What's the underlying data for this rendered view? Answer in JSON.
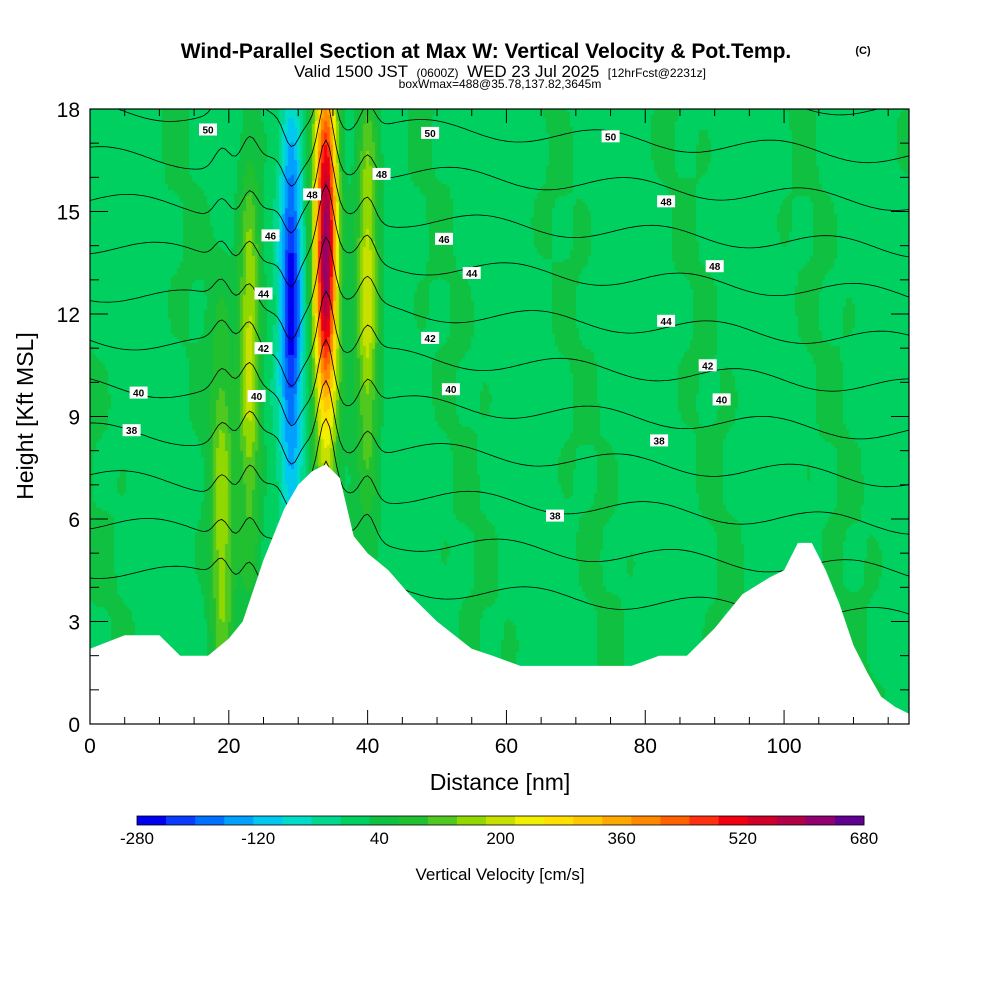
{
  "chart_data": {
    "type": "heatmap",
    "title": "Wind-Parallel Section at Max W: Vertical Velocity & Pot.Temp.",
    "title_mark": "(C)",
    "subtitle": {
      "valid": "Valid 1500 JST",
      "utc": "(0600Z)",
      "date": "WED 23 Jul 2025",
      "forecast": "[12hrFcst@2231z]"
    },
    "box_info": "boxWmax=488@35.78,137.82,3645m",
    "xlabel": "Distance [nm]",
    "ylabel": "Height [Kft MSL]",
    "xlim": [
      0,
      118
    ],
    "ylim": [
      0,
      18
    ],
    "x_ticks": [
      "0",
      "20",
      "40",
      "60",
      "80",
      "100"
    ],
    "y_ticks": [
      "0",
      "3",
      "6",
      "9",
      "12",
      "15",
      "18"
    ],
    "colorbar": {
      "label": "Vertical Velocity [cm/s]",
      "range": [
        -280,
        680
      ],
      "step": 40,
      "ticks": [
        "-280",
        "-120",
        "40",
        "200",
        "360",
        "520",
        "680"
      ],
      "colors": [
        "#0000f0",
        "#0a3cff",
        "#0070ff",
        "#00a0ff",
        "#00c8f0",
        "#00dcc8",
        "#00d890",
        "#00d060",
        "#10c040",
        "#20c030",
        "#50c820",
        "#90d800",
        "#c8e000",
        "#f0f000",
        "#ffe000",
        "#ffc800",
        "#ffa800",
        "#ff8800",
        "#ff6000",
        "#ff3010",
        "#f00010",
        "#d00028",
        "#b00048",
        "#900070",
        "#600090"
      ]
    },
    "terrain_kft": {
      "x": [
        0,
        5,
        10,
        13,
        17,
        20,
        22,
        25,
        28,
        30,
        32,
        34,
        36,
        38,
        40,
        43,
        46,
        50,
        55,
        58,
        62,
        70,
        78,
        82,
        86,
        90,
        94,
        98,
        100,
        102,
        104,
        106,
        108,
        110,
        112,
        114,
        116,
        118
      ],
      "y": [
        2.2,
        2.6,
        2.6,
        2.0,
        2.0,
        2.5,
        3.0,
        4.8,
        6.3,
        7.0,
        7.4,
        7.6,
        7.2,
        5.5,
        5.0,
        4.5,
        3.8,
        3.0,
        2.2,
        2.0,
        1.7,
        1.7,
        1.7,
        2.0,
        2.0,
        2.8,
        3.8,
        4.3,
        4.5,
        5.3,
        5.3,
        4.5,
        3.5,
        2.3,
        1.5,
        0.8,
        0.5,
        0.3
      ]
    },
    "w_features": [
      {
        "x": 19,
        "z": 6,
        "w": 180
      },
      {
        "x": 23,
        "z": 11,
        "w": 230
      },
      {
        "x": 29,
        "z": 12.5,
        "w": -270
      },
      {
        "x": 34,
        "z": 14,
        "w": 660
      },
      {
        "x": 40,
        "z": 13,
        "w": 240
      }
    ],
    "theta_levels": [
      36,
      37,
      38,
      39,
      40,
      41,
      42,
      43,
      44,
      45,
      46,
      47,
      48,
      49,
      50,
      51
    ],
    "theta_labels": [
      {
        "text": "50",
        "x": 17,
        "y": 17.4
      },
      {
        "text": "50",
        "x": 49,
        "y": 17.3
      },
      {
        "text": "50",
        "x": 75,
        "y": 17.2
      },
      {
        "text": "48",
        "x": 32,
        "y": 15.5
      },
      {
        "text": "48",
        "x": 42,
        "y": 16.1
      },
      {
        "text": "48",
        "x": 83,
        "y": 15.3
      },
      {
        "text": "48",
        "x": 90,
        "y": 13.4
      },
      {
        "text": "46",
        "x": 26,
        "y": 14.3
      },
      {
        "text": "46",
        "x": 51,
        "y": 14.2
      },
      {
        "text": "44",
        "x": 25,
        "y": 12.6
      },
      {
        "text": "44",
        "x": 55,
        "y": 13.2
      },
      {
        "text": "44",
        "x": 83,
        "y": 11.8
      },
      {
        "text": "42",
        "x": 25,
        "y": 11.0
      },
      {
        "text": "42",
        "x": 49,
        "y": 11.3
      },
      {
        "text": "42",
        "x": 89,
        "y": 10.5
      },
      {
        "text": "40",
        "x": 7,
        "y": 9.7
      },
      {
        "text": "40",
        "x": 24,
        "y": 9.6
      },
      {
        "text": "40",
        "x": 52,
        "y": 9.8
      },
      {
        "text": "40",
        "x": 91,
        "y": 9.5
      },
      {
        "text": "38",
        "x": 6,
        "y": 8.6
      },
      {
        "text": "38",
        "x": 82,
        "y": 8.3
      },
      {
        "text": "38",
        "x": 67,
        "y": 6.1
      }
    ]
  }
}
